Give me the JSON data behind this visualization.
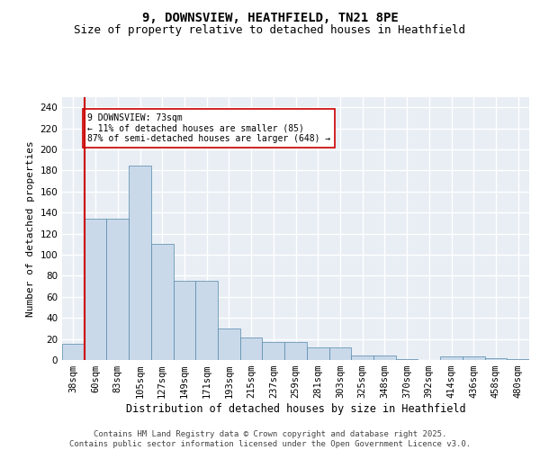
{
  "title1": "9, DOWNSVIEW, HEATHFIELD, TN21 8PE",
  "title2": "Size of property relative to detached houses in Heathfield",
  "xlabel": "Distribution of detached houses by size in Heathfield",
  "ylabel": "Number of detached properties",
  "categories": [
    "38sqm",
    "60sqm",
    "83sqm",
    "105sqm",
    "127sqm",
    "149sqm",
    "171sqm",
    "193sqm",
    "215sqm",
    "237sqm",
    "259sqm",
    "281sqm",
    "303sqm",
    "325sqm",
    "348sqm",
    "370sqm",
    "392sqm",
    "414sqm",
    "436sqm",
    "458sqm",
    "480sqm"
  ],
  "values": [
    15,
    134,
    134,
    185,
    110,
    75,
    75,
    30,
    21,
    17,
    17,
    12,
    12,
    4,
    4,
    1,
    0,
    3,
    3,
    2,
    1
  ],
  "bar_color": "#c9d9ea",
  "bar_edge_color": "#5588aa",
  "vline_color": "#cc0000",
  "annotation_text": "9 DOWNSVIEW: 73sqm\n← 11% of detached houses are smaller (85)\n87% of semi-detached houses are larger (648) →",
  "annotation_box_facecolor": "#ffffff",
  "annotation_box_edgecolor": "#cc0000",
  "ylim": [
    0,
    250
  ],
  "yticks": [
    0,
    20,
    40,
    60,
    80,
    100,
    120,
    140,
    160,
    180,
    200,
    220,
    240
  ],
  "bg_color": "#e8eef4",
  "grid_color": "#ffffff",
  "footer_text": "Contains HM Land Registry data © Crown copyright and database right 2025.\nContains public sector information licensed under the Open Government Licence v3.0.",
  "title1_fontsize": 10,
  "title2_fontsize": 9,
  "xlabel_fontsize": 8.5,
  "ylabel_fontsize": 8,
  "tick_fontsize": 7.5,
  "footer_fontsize": 6.5,
  "annot_fontsize": 7
}
